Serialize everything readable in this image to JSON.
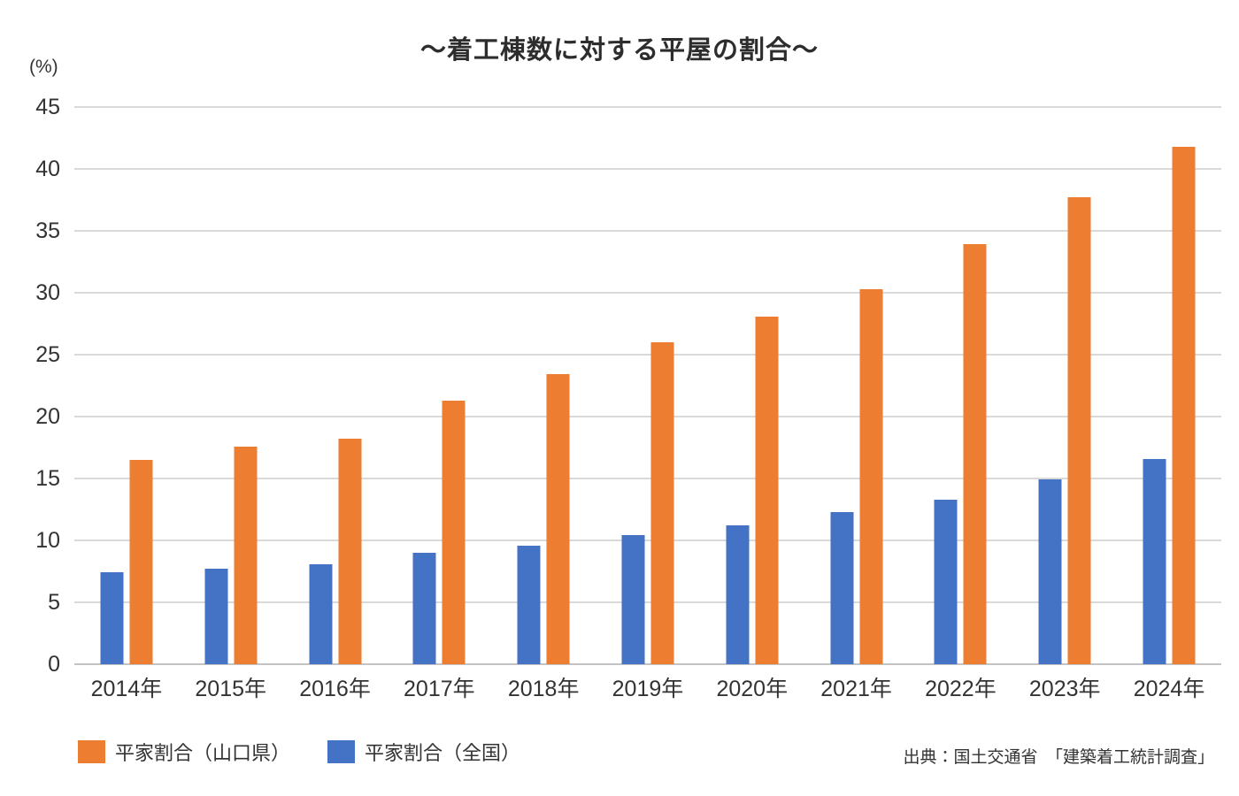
{
  "title": "～着工棟数に対する平屋の割合～",
  "y_axis_unit": "(%)",
  "source": "出典：国土交通省　「建築着工統計調査」",
  "colors": {
    "yamaguchi_orange": "#ED7D31",
    "national_blue": "#4472C4",
    "gridline": "#d9d9d9"
  },
  "legend": [
    {
      "id": "yamaguchi",
      "label": "平家割合（山口県）",
      "color": "#ED7D31"
    },
    {
      "id": "national",
      "label": "平家割合（全国）",
      "color": "#4472C4"
    }
  ],
  "chart_data": {
    "type": "bar",
    "title": "～着工棟数に対する平屋の割合～",
    "categories": [
      "2014年",
      "2015年",
      "2016年",
      "2017年",
      "2018年",
      "2019年",
      "2020年",
      "2021年",
      "2022年",
      "2023年",
      "2024年"
    ],
    "series": [
      {
        "name": "平家割合（全国）",
        "color": "#4472C4",
        "values": [
          7.4,
          7.7,
          8.1,
          9.0,
          9.6,
          10.4,
          11.2,
          12.3,
          13.3,
          14.9,
          16.6
        ]
      },
      {
        "name": "平家割合（山口県）",
        "color": "#ED7D31",
        "values": [
          16.5,
          17.6,
          18.2,
          21.3,
          23.4,
          26.0,
          28.1,
          30.3,
          33.9,
          37.7,
          41.8
        ]
      }
    ],
    "xlabel": "",
    "ylabel": "(%)",
    "ylim": [
      0,
      45
    ],
    "ytick_step": 5,
    "grid": true,
    "legend_position": "bottom-left",
    "source": "出典：国土交通省　「建築着工統計調査」"
  }
}
